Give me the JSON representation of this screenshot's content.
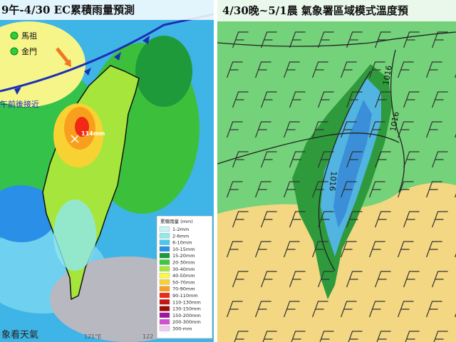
{
  "left_panel": {
    "title": "9午-4/30 EC累積雨量預測",
    "places": [
      "馬祖",
      "金門"
    ],
    "front_note": "午前後接近",
    "max_label": "114mm",
    "legend": {
      "title": "累積雨量 (mm)",
      "items": [
        {
          "label": "1-2mm",
          "color": "#c8f4f4"
        },
        {
          "label": "2-6mm",
          "color": "#8fe8f0"
        },
        {
          "label": "6-10mm",
          "color": "#46c8f0"
        },
        {
          "label": "10-15mm",
          "color": "#2a8fe6"
        },
        {
          "label": "15-20mm",
          "color": "#1c9a3c"
        },
        {
          "label": "20-30mm",
          "color": "#3cc83c"
        },
        {
          "label": "30-40mm",
          "color": "#a6e63c"
        },
        {
          "label": "40-50mm",
          "color": "#fafa46"
        },
        {
          "label": "50-70mm",
          "color": "#f8d232"
        },
        {
          "label": "70-90mm",
          "color": "#f8a01e"
        },
        {
          "label": "90-110mm",
          "color": "#f02814"
        },
        {
          "label": "110-130mm",
          "color": "#c81414"
        },
        {
          "label": "130-150mm",
          "color": "#a00a0a"
        },
        {
          "label": "150-200mm",
          "color": "#a014a0"
        },
        {
          "label": "200-300mm",
          "color": "#d250d2"
        },
        {
          "label": "300-mm",
          "color": "#f0c8f0"
        }
      ]
    },
    "axis_labels": [
      "121°E",
      "122"
    ],
    "watermark": "象看天氣"
  },
  "right_panel": {
    "title": "4/30晚~5/1晨 氣象署區域模式溫度預",
    "isobar_labels": [
      "1016",
      "1016",
      "1016"
    ]
  }
}
